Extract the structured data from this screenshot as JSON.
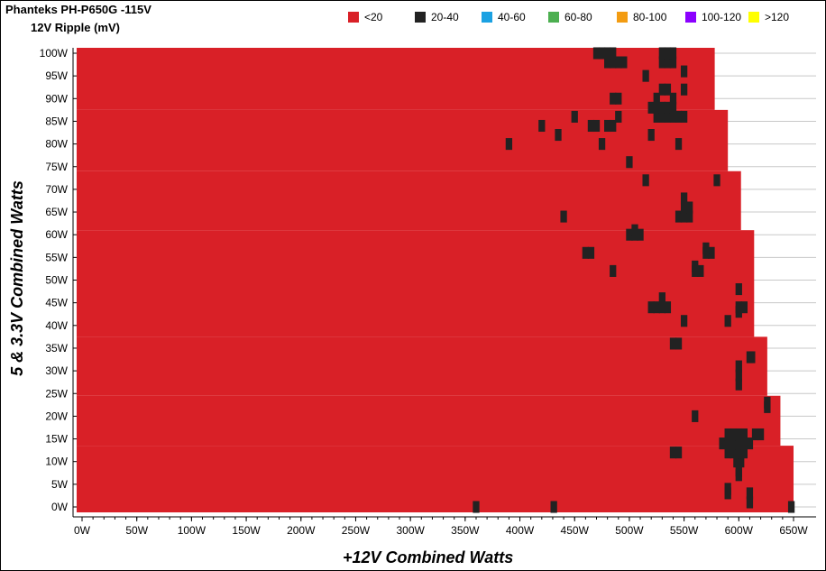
{
  "header": {
    "title": "Phanteks PH-P650G -115V",
    "subtitle": "12V Ripple (mV)"
  },
  "legend": [
    {
      "label": "<20",
      "color": "#d92027"
    },
    {
      "label": "20-40",
      "color": "#222222"
    },
    {
      "label": "40-60",
      "color": "#1ba1e2"
    },
    {
      "label": "60-80",
      "color": "#4caf50"
    },
    {
      "label": "80-100",
      "color": "#f39c12"
    },
    {
      "label": "100-120",
      "color": "#8b00ff"
    },
    {
      "label": ">120",
      "color": "#ffff00"
    }
  ],
  "chart_data": {
    "type": "heatmap",
    "title": "Phanteks PH-P650G -115V",
    "subtitle": "12V Ripple (mV)",
    "xlabel": "+12V Combined Watts",
    "ylabel": "5 & 3.3V Combined Watts",
    "xlim": [
      0,
      650
    ],
    "ylim": [
      0,
      100
    ],
    "x_ticks": [
      "0W",
      "50W",
      "100W",
      "150W",
      "200W",
      "250W",
      "300W",
      "350W",
      "400W",
      "450W",
      "500W",
      "550W",
      "600W",
      "650W"
    ],
    "y_ticks": [
      "0W",
      "5W",
      "10W",
      "15W",
      "20W",
      "25W",
      "30W",
      "35W",
      "40W",
      "45W",
      "50W",
      "55W",
      "60W",
      "65W",
      "70W",
      "75W",
      "80W",
      "85W",
      "90W",
      "95W",
      "100W"
    ],
    "region_max_x_by_y": [
      {
        "y_from": 0,
        "y_to": 13.5,
        "x_max": 650
      },
      {
        "y_from": 13.5,
        "y_to": 24.5,
        "x_max": 638
      },
      {
        "y_from": 24.5,
        "y_to": 37.5,
        "x_max": 626
      },
      {
        "y_from": 37.5,
        "y_to": 61,
        "x_max": 614
      },
      {
        "y_from": 61,
        "y_to": 74,
        "x_max": 602
      },
      {
        "y_from": 74,
        "y_to": 87.5,
        "x_max": 590
      },
      {
        "y_from": 87.5,
        "y_to": 100,
        "x_max": 578
      }
    ],
    "band_red": "<20",
    "band_black": "20-40",
    "black_points": [
      {
        "x": 360,
        "y": 0
      },
      {
        "x": 431,
        "y": 0
      },
      {
        "x": 648,
        "y": 0
      },
      {
        "x": 610,
        "y": 1
      },
      {
        "x": 610,
        "y": 3
      },
      {
        "x": 590,
        "y": 3
      },
      {
        "x": 590,
        "y": 4
      },
      {
        "x": 600,
        "y": 7
      },
      {
        "x": 600,
        "y": 8
      },
      {
        "x": 598,
        "y": 10
      },
      {
        "x": 602,
        "y": 10
      },
      {
        "x": 540,
        "y": 12
      },
      {
        "x": 545,
        "y": 12
      },
      {
        "x": 590,
        "y": 12
      },
      {
        "x": 595,
        "y": 12
      },
      {
        "x": 600,
        "y": 12
      },
      {
        "x": 605,
        "y": 12
      },
      {
        "x": 585,
        "y": 14
      },
      {
        "x": 590,
        "y": 14
      },
      {
        "x": 595,
        "y": 14
      },
      {
        "x": 600,
        "y": 14
      },
      {
        "x": 605,
        "y": 14
      },
      {
        "x": 610,
        "y": 14
      },
      {
        "x": 590,
        "y": 16
      },
      {
        "x": 595,
        "y": 16
      },
      {
        "x": 600,
        "y": 16
      },
      {
        "x": 605,
        "y": 16
      },
      {
        "x": 615,
        "y": 16
      },
      {
        "x": 620,
        "y": 16
      },
      {
        "x": 560,
        "y": 20
      },
      {
        "x": 626,
        "y": 23
      },
      {
        "x": 626,
        "y": 22
      },
      {
        "x": 600,
        "y": 27
      },
      {
        "x": 600,
        "y": 29
      },
      {
        "x": 600,
        "y": 31
      },
      {
        "x": 610,
        "y": 33
      },
      {
        "x": 612,
        "y": 33
      },
      {
        "x": 540,
        "y": 36
      },
      {
        "x": 545,
        "y": 36
      },
      {
        "x": 550,
        "y": 41
      },
      {
        "x": 590,
        "y": 41
      },
      {
        "x": 520,
        "y": 44
      },
      {
        "x": 525,
        "y": 44
      },
      {
        "x": 530,
        "y": 44
      },
      {
        "x": 535,
        "y": 44
      },
      {
        "x": 530,
        "y": 46
      },
      {
        "x": 600,
        "y": 44
      },
      {
        "x": 605,
        "y": 44
      },
      {
        "x": 600,
        "y": 43
      },
      {
        "x": 600,
        "y": 48
      },
      {
        "x": 485,
        "y": 52
      },
      {
        "x": 560,
        "y": 52
      },
      {
        "x": 565,
        "y": 52
      },
      {
        "x": 560,
        "y": 53
      },
      {
        "x": 460,
        "y": 56
      },
      {
        "x": 465,
        "y": 56
      },
      {
        "x": 570,
        "y": 56
      },
      {
        "x": 575,
        "y": 56
      },
      {
        "x": 570,
        "y": 57
      },
      {
        "x": 505,
        "y": 60
      },
      {
        "x": 510,
        "y": 60
      },
      {
        "x": 500,
        "y": 60
      },
      {
        "x": 505,
        "y": 61
      },
      {
        "x": 440,
        "y": 64
      },
      {
        "x": 545,
        "y": 64
      },
      {
        "x": 550,
        "y": 64
      },
      {
        "x": 555,
        "y": 64
      },
      {
        "x": 550,
        "y": 66
      },
      {
        "x": 555,
        "y": 66
      },
      {
        "x": 550,
        "y": 68
      },
      {
        "x": 515,
        "y": 72
      },
      {
        "x": 580,
        "y": 72
      },
      {
        "x": 500,
        "y": 76
      },
      {
        "x": 390,
        "y": 80
      },
      {
        "x": 475,
        "y": 80
      },
      {
        "x": 545,
        "y": 80
      },
      {
        "x": 435,
        "y": 82
      },
      {
        "x": 520,
        "y": 82
      },
      {
        "x": 420,
        "y": 84
      },
      {
        "x": 465,
        "y": 84
      },
      {
        "x": 470,
        "y": 84
      },
      {
        "x": 480,
        "y": 84
      },
      {
        "x": 485,
        "y": 84
      },
      {
        "x": 450,
        "y": 86
      },
      {
        "x": 490,
        "y": 86
      },
      {
        "x": 525,
        "y": 86
      },
      {
        "x": 530,
        "y": 86
      },
      {
        "x": 535,
        "y": 86
      },
      {
        "x": 540,
        "y": 86
      },
      {
        "x": 545,
        "y": 86
      },
      {
        "x": 550,
        "y": 86
      },
      {
        "x": 520,
        "y": 88
      },
      {
        "x": 525,
        "y": 88
      },
      {
        "x": 530,
        "y": 88
      },
      {
        "x": 535,
        "y": 88
      },
      {
        "x": 540,
        "y": 88
      },
      {
        "x": 485,
        "y": 90
      },
      {
        "x": 490,
        "y": 90
      },
      {
        "x": 525,
        "y": 90
      },
      {
        "x": 540,
        "y": 90
      },
      {
        "x": 530,
        "y": 92
      },
      {
        "x": 535,
        "y": 92
      },
      {
        "x": 550,
        "y": 92
      },
      {
        "x": 515,
        "y": 95
      },
      {
        "x": 550,
        "y": 96
      },
      {
        "x": 530,
        "y": 98
      },
      {
        "x": 535,
        "y": 98
      },
      {
        "x": 540,
        "y": 98
      },
      {
        "x": 480,
        "y": 98
      },
      {
        "x": 485,
        "y": 98
      },
      {
        "x": 490,
        "y": 98
      },
      {
        "x": 495,
        "y": 98
      },
      {
        "x": 470,
        "y": 100
      },
      {
        "x": 475,
        "y": 100
      },
      {
        "x": 480,
        "y": 100
      },
      {
        "x": 485,
        "y": 100
      },
      {
        "x": 530,
        "y": 100
      },
      {
        "x": 535,
        "y": 100
      },
      {
        "x": 540,
        "y": 100
      }
    ],
    "grid": true,
    "legend_position": "top-right"
  }
}
